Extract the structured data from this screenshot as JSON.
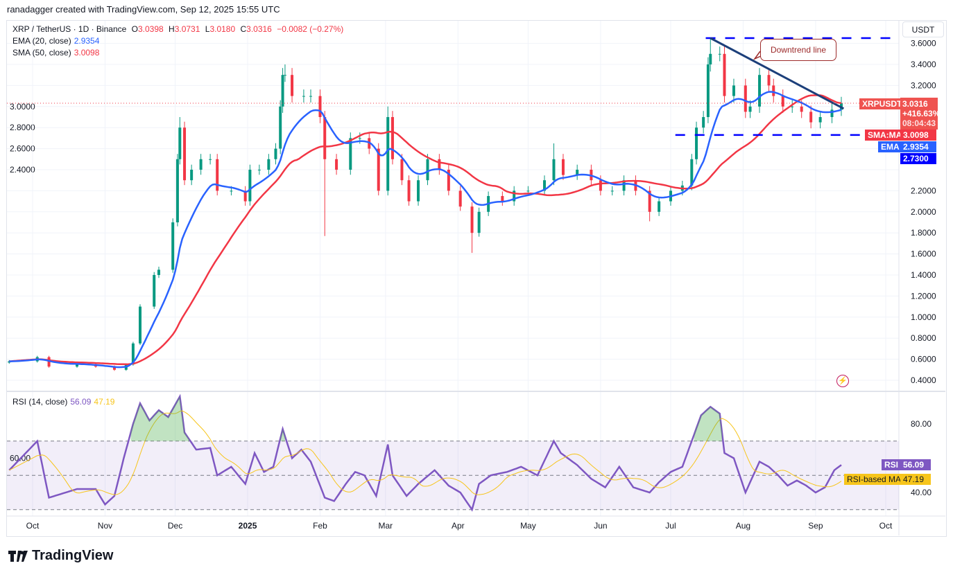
{
  "credit": "ranadagger created with TradingView.com, Sep 12, 2025 15:55 UTC",
  "legend": {
    "symbol": "XRP / TetherUS · 1D · Binance",
    "o_label": "O",
    "o": "3.0398",
    "h_label": "H",
    "h": "3.0731",
    "l_label": "L",
    "l": "3.0180",
    "c_label": "C",
    "c": "3.0316",
    "change": "−0.0082 (−0.27%)",
    "ema_label": "EMA (20, close)",
    "ema": "2.9354",
    "sma_label": "SMA (50, close)",
    "sma": "3.0098",
    "rsi_label": "RSI (14, close)",
    "rsi": "56.09",
    "rsi_ma": "47.19"
  },
  "currency": "USDT",
  "tags": {
    "symbol": "XRPUSDT",
    "price": "3.0316",
    "pct": "+416.63%",
    "countdown": "08:04:43",
    "sma_name": "SMA:MA",
    "sma_val": "3.0098",
    "ema_name": "EMA",
    "ema_val": "2.9354",
    "support": "2.7300",
    "rsi_name": "RSI",
    "rsi_val": "56.09",
    "rsi_ma_name": "RSI-based MA",
    "rsi_ma_val": "47.19"
  },
  "annotation": "Downtrend line",
  "logo": "TradingView",
  "colors": {
    "up": "#089981",
    "down": "#f23645",
    "ema": "#2962ff",
    "sma": "#f23645",
    "rsi": "#7e57c2",
    "rsi_ma": "#f7c51b",
    "trend": "#1c3f7a",
    "level": "#0000ff"
  },
  "chart_data": [
    {
      "type": "candlestick",
      "title": "XRP / TetherUS · 1D · Binance",
      "ylabel": "USDT",
      "ylim": [
        0.3,
        3.75
      ],
      "y_ticks": [
        "3.6000",
        "3.4000",
        "3.2000",
        "3.0000",
        "2.8000",
        "2.6000",
        "2.4000",
        "2.2000",
        "2.0000",
        "1.8000",
        "1.6000",
        "1.4000",
        "1.2000",
        "1.0000",
        "0.8000",
        "0.6000",
        "0.4000"
      ],
      "x_ticks": [
        "Oct",
        "Nov",
        "Dec",
        "2025",
        "Feb",
        "Mar",
        "Apr",
        "May",
        "Jun",
        "Jul",
        "Aug",
        "Sep",
        "Oct"
      ],
      "closes": [
        [
          "2024-09-21",
          0.58
        ],
        [
          "2024-10-03",
          0.62
        ],
        [
          "2024-10-08",
          0.53
        ],
        [
          "2024-10-20",
          0.55
        ],
        [
          "2024-10-28",
          0.53
        ],
        [
          "2024-11-05",
          0.5
        ],
        [
          "2024-11-10",
          0.55
        ],
        [
          "2024-11-13",
          0.75
        ],
        [
          "2024-11-16",
          1.1
        ],
        [
          "2024-11-22",
          1.4
        ],
        [
          "2024-11-24",
          1.45
        ],
        [
          "2024-11-30",
          1.9
        ],
        [
          "2024-12-02",
          2.5
        ],
        [
          "2024-12-03",
          2.8
        ],
        [
          "2024-12-05",
          2.3
        ],
        [
          "2024-12-08",
          2.4
        ],
        [
          "2024-12-12",
          2.5
        ],
        [
          "2024-12-16",
          2.5
        ],
        [
          "2024-12-19",
          2.2
        ],
        [
          "2024-12-25",
          2.2
        ],
        [
          "2024-12-31",
          2.1
        ],
        [
          "2025-01-02",
          2.4
        ],
        [
          "2025-01-06",
          2.4
        ],
        [
          "2025-01-10",
          2.5
        ],
        [
          "2025-01-13",
          2.6
        ],
        [
          "2025-01-15",
          3.0
        ],
        [
          "2025-01-16",
          3.3
        ],
        [
          "2025-01-17",
          3.3
        ],
        [
          "2025-01-20",
          3.1
        ],
        [
          "2025-01-25",
          3.1
        ],
        [
          "2025-01-28",
          3.1
        ],
        [
          "2025-02-01",
          2.9
        ],
        [
          "2025-02-03",
          2.5
        ],
        [
          "2025-02-08",
          2.4
        ],
        [
          "2025-02-14",
          2.7
        ],
        [
          "2025-02-18",
          2.7
        ],
        [
          "2025-02-22",
          2.6
        ],
        [
          "2025-02-26",
          2.2
        ],
        [
          "2025-03-02",
          2.9
        ],
        [
          "2025-03-04",
          2.5
        ],
        [
          "2025-03-08",
          2.3
        ],
        [
          "2025-03-11",
          2.1
        ],
        [
          "2025-03-15",
          2.3
        ],
        [
          "2025-03-19",
          2.5
        ],
        [
          "2025-03-24",
          2.4
        ],
        [
          "2025-03-28",
          2.2
        ],
        [
          "2025-04-02",
          2.05
        ],
        [
          "2025-04-07",
          1.8
        ],
        [
          "2025-04-10",
          2.0
        ],
        [
          "2025-04-14",
          2.15
        ],
        [
          "2025-04-20",
          2.1
        ],
        [
          "2025-04-25",
          2.2
        ],
        [
          "2025-05-01",
          2.2
        ],
        [
          "2025-05-08",
          2.3
        ],
        [
          "2025-05-12",
          2.5
        ],
        [
          "2025-05-16",
          2.35
        ],
        [
          "2025-05-22",
          2.4
        ],
        [
          "2025-05-28",
          2.3
        ],
        [
          "2025-06-01",
          2.2
        ],
        [
          "2025-06-06",
          2.2
        ],
        [
          "2025-06-11",
          2.3
        ],
        [
          "2025-06-16",
          2.2
        ],
        [
          "2025-06-22",
          2.0
        ],
        [
          "2025-06-26",
          2.1
        ],
        [
          "2025-07-01",
          2.2
        ],
        [
          "2025-07-06",
          2.25
        ],
        [
          "2025-07-10",
          2.5
        ],
        [
          "2025-07-12",
          2.8
        ],
        [
          "2025-07-15",
          2.9
        ],
        [
          "2025-07-17",
          3.4
        ],
        [
          "2025-07-18",
          3.5
        ],
        [
          "2025-07-22",
          3.5
        ],
        [
          "2025-07-24",
          3.1
        ],
        [
          "2025-07-28",
          3.2
        ],
        [
          "2025-08-02",
          2.95
        ],
        [
          "2025-08-04",
          3.0
        ],
        [
          "2025-08-08",
          3.3
        ],
        [
          "2025-08-12",
          3.2
        ],
        [
          "2025-08-14",
          3.1
        ],
        [
          "2025-08-18",
          3.0
        ],
        [
          "2025-08-22",
          3.0
        ],
        [
          "2025-08-26",
          2.95
        ],
        [
          "2025-08-30",
          2.85
        ],
        [
          "2025-09-03",
          2.9
        ],
        [
          "2025-09-08",
          2.97
        ],
        [
          "2025-09-12",
          3.0316
        ]
      ],
      "lows": [
        [
          "2025-02-03",
          1.77
        ],
        [
          "2025-04-07",
          1.61
        ],
        [
          "2025-06-22",
          1.91
        ]
      ],
      "highs": [
        [
          "2024-12-03",
          2.9
        ],
        [
          "2025-01-17",
          3.4
        ],
        [
          "2025-03-02",
          3.0
        ],
        [
          "2025-05-12",
          2.65
        ],
        [
          "2025-07-18",
          3.65
        ]
      ],
      "levels": [
        3.65,
        2.73
      ],
      "trendline": [
        [
          "2025-07-18",
          3.65
        ],
        [
          "2025-09-13",
          2.98
        ]
      ]
    },
    {
      "type": "line",
      "title": "RSI (14, close)",
      "ylim": [
        25,
        100
      ],
      "y_ticks": [
        "80.00",
        "60.00",
        "40.00"
      ],
      "bands": [
        30,
        70
      ],
      "values": [
        [
          "2024-09-21",
          53
        ],
        [
          "2024-10-03",
          70
        ],
        [
          "2024-10-08",
          37
        ],
        [
          "2024-10-20",
          42
        ],
        [
          "2024-10-28",
          42
        ],
        [
          "2024-11-01",
          33
        ],
        [
          "2024-11-05",
          38
        ],
        [
          "2024-11-09",
          60
        ],
        [
          "2024-11-13",
          80
        ],
        [
          "2024-11-16",
          92
        ],
        [
          "2024-11-20",
          82
        ],
        [
          "2024-11-24",
          88
        ],
        [
          "2024-11-28",
          84
        ],
        [
          "2024-12-03",
          96
        ],
        [
          "2024-12-05",
          75
        ],
        [
          "2024-12-10",
          65
        ],
        [
          "2024-12-16",
          66
        ],
        [
          "2024-12-19",
          50
        ],
        [
          "2024-12-25",
          55
        ],
        [
          "2024-12-31",
          45
        ],
        [
          "2025-01-04",
          63
        ],
        [
          "2025-01-08",
          52
        ],
        [
          "2025-01-12",
          55
        ],
        [
          "2025-01-16",
          77
        ],
        [
          "2025-01-20",
          60
        ],
        [
          "2025-01-24",
          65
        ],
        [
          "2025-01-28",
          58
        ],
        [
          "2025-02-03",
          37
        ],
        [
          "2025-02-07",
          35
        ],
        [
          "2025-02-12",
          45
        ],
        [
          "2025-02-16",
          52
        ],
        [
          "2025-02-20",
          50
        ],
        [
          "2025-02-25",
          38
        ],
        [
          "2025-03-02",
          68
        ],
        [
          "2025-03-04",
          50
        ],
        [
          "2025-03-10",
          38
        ],
        [
          "2025-03-15",
          45
        ],
        [
          "2025-03-22",
          53
        ],
        [
          "2025-03-28",
          44
        ],
        [
          "2025-04-02",
          40
        ],
        [
          "2025-04-07",
          30
        ],
        [
          "2025-04-10",
          45
        ],
        [
          "2025-04-15",
          50
        ],
        [
          "2025-04-22",
          52
        ],
        [
          "2025-04-28",
          55
        ],
        [
          "2025-05-05",
          50
        ],
        [
          "2025-05-12",
          70
        ],
        [
          "2025-05-15",
          63
        ],
        [
          "2025-05-22",
          56
        ],
        [
          "2025-05-28",
          48
        ],
        [
          "2025-06-03",
          43
        ],
        [
          "2025-06-09",
          55
        ],
        [
          "2025-06-15",
          43
        ],
        [
          "2025-06-22",
          40
        ],
        [
          "2025-06-26",
          46
        ],
        [
          "2025-07-01",
          52
        ],
        [
          "2025-07-06",
          55
        ],
        [
          "2025-07-10",
          70
        ],
        [
          "2025-07-14",
          85
        ],
        [
          "2025-07-18",
          90
        ],
        [
          "2025-07-22",
          86
        ],
        [
          "2025-07-24",
          63
        ],
        [
          "2025-07-28",
          60
        ],
        [
          "2025-08-02",
          40
        ],
        [
          "2025-08-08",
          58
        ],
        [
          "2025-08-12",
          55
        ],
        [
          "2025-08-16",
          50
        ],
        [
          "2025-08-20",
          44
        ],
        [
          "2025-08-24",
          47
        ],
        [
          "2025-08-28",
          44
        ],
        [
          "2025-09-01",
          40
        ],
        [
          "2025-09-05",
          43
        ],
        [
          "2025-09-09",
          53
        ],
        [
          "2025-09-12",
          56.09
        ]
      ]
    }
  ]
}
